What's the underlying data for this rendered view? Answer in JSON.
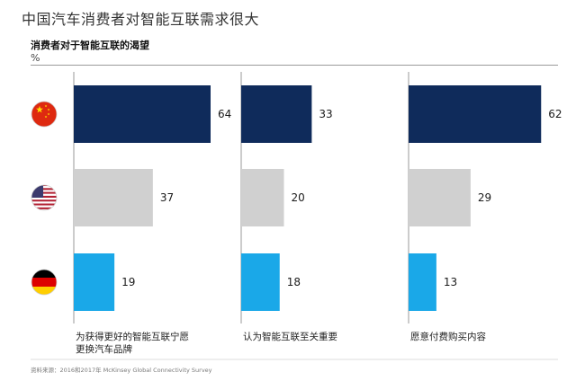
{
  "page": {
    "title": "中国汽车消费者对智能互联需求很大",
    "source": "资料来源：2016和2017年 McKinsey Global Connectivity Survey"
  },
  "chart_data": {
    "type": "bar",
    "orientation": "horizontal",
    "title": "消费者对于智能互联的渴望",
    "unit": "%",
    "xlim": [
      0,
      70
    ],
    "grid": false,
    "legend": "none",
    "countries": [
      {
        "name": "China",
        "flag": "china-flag-icon",
        "color": "#0f2b5b"
      },
      {
        "name": "United States",
        "flag": "usa-flag-icon",
        "color": "#d0d0d0"
      },
      {
        "name": "Germany",
        "flag": "germany-flag-icon",
        "color": "#1aa8e8"
      }
    ],
    "panels": [
      {
        "label": "为获得更好的智能互联宁愿更换汽车品牌",
        "label_lines": [
          "为获得更好的智能互联宁愿",
          "更换汽车品牌"
        ],
        "values": [
          64,
          37,
          19
        ]
      },
      {
        "label": "认为智能互联至关重要",
        "label_lines": [
          "认为智能互联至关重要"
        ],
        "values": [
          33,
          20,
          18
        ]
      },
      {
        "label": "愿意付费购买内容",
        "label_lines": [
          "愿意付费购买内容"
        ],
        "values": [
          62,
          29,
          13
        ]
      }
    ]
  }
}
